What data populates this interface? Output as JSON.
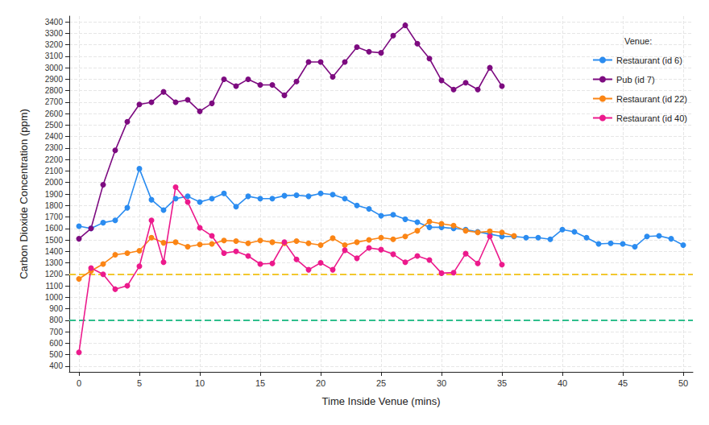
{
  "chart_data": {
    "type": "line",
    "x_label": "Time Inside Venue (mins)",
    "y_label": "Carbon Dioxide Concentration (ppm)",
    "legend_title": "Venue:",
    "legend": "top-right",
    "grid": true,
    "marker": "circle",
    "xlim": [
      -0.8,
      50.8
    ],
    "xticks": [
      0,
      5,
      10,
      15,
      20,
      25,
      30,
      35,
      40,
      45,
      50
    ],
    "ylim": [
      350,
      3450
    ],
    "yticks": [
      400,
      500,
      600,
      700,
      800,
      900,
      1000,
      1100,
      1200,
      1300,
      1400,
      1500,
      1600,
      1700,
      1800,
      1900,
      2000,
      2100,
      2200,
      2300,
      2400,
      2500,
      2600,
      2700,
      2800,
      2900,
      3000,
      3100,
      3200,
      3300,
      3400
    ],
    "hlines": [
      {
        "value": 1200,
        "color": "#f2c82e",
        "line_style": "dashed"
      },
      {
        "value": 800,
        "color": "#2ebf8c",
        "line_style": "dashed"
      }
    ],
    "series": [
      {
        "name": "Restaurant (id 6)",
        "color": "#2b8cf0",
        "x": [
          0,
          1,
          2,
          3,
          4,
          5,
          6,
          7,
          8,
          9,
          10,
          11,
          12,
          13,
          14,
          15,
          16,
          17,
          18,
          19,
          20,
          21,
          22,
          23,
          24,
          25,
          26,
          27,
          28,
          29,
          30,
          31,
          32,
          33,
          34,
          35,
          36,
          37,
          38,
          39,
          40,
          41,
          42,
          43,
          44,
          45,
          46,
          47,
          48,
          49,
          50
        ],
        "values": [
          1620,
          1600,
          1650,
          1670,
          1780,
          2120,
          1850,
          1760,
          1860,
          1880,
          1830,
          1860,
          1905,
          1790,
          1880,
          1860,
          1860,
          1885,
          1890,
          1880,
          1905,
          1895,
          1860,
          1800,
          1770,
          1710,
          1720,
          1680,
          1655,
          1610,
          1610,
          1600,
          1590,
          1570,
          1550,
          1530,
          1530,
          1520,
          1520,
          1505,
          1590,
          1570,
          1520,
          1465,
          1470,
          1465,
          1440,
          1530,
          1535,
          1510,
          1455
        ]
      },
      {
        "name": "Pub (id 7)",
        "color": "#7d0b80",
        "x": [
          0,
          1,
          2,
          3,
          4,
          5,
          6,
          7,
          8,
          9,
          10,
          11,
          12,
          13,
          14,
          15,
          16,
          17,
          18,
          19,
          20,
          21,
          22,
          23,
          24,
          25,
          26,
          27,
          28,
          29,
          30,
          31,
          32,
          33,
          34,
          35
        ],
        "values": [
          1510,
          1600,
          1980,
          2280,
          2530,
          2680,
          2700,
          2790,
          2700,
          2720,
          2620,
          2690,
          2900,
          2840,
          2900,
          2850,
          2850,
          2760,
          2880,
          3050,
          3050,
          2920,
          3050,
          3180,
          3140,
          3130,
          3280,
          3370,
          3210,
          3080,
          2890,
          2810,
          2870,
          2810,
          3000,
          2840
        ]
      },
      {
        "name": "Restaurant (id 22)",
        "color": "#fb8515",
        "x": [
          0,
          1,
          2,
          3,
          4,
          5,
          6,
          7,
          8,
          9,
          10,
          11,
          12,
          13,
          14,
          15,
          16,
          17,
          18,
          19,
          20,
          21,
          22,
          23,
          24,
          25,
          26,
          27,
          28,
          29,
          30,
          31,
          32,
          33,
          34,
          35,
          36
        ],
        "values": [
          1160,
          1230,
          1290,
          1370,
          1385,
          1405,
          1520,
          1475,
          1480,
          1440,
          1460,
          1465,
          1495,
          1490,
          1470,
          1495,
          1480,
          1470,
          1490,
          1470,
          1455,
          1515,
          1455,
          1480,
          1500,
          1520,
          1505,
          1530,
          1580,
          1660,
          1640,
          1625,
          1580,
          1565,
          1575,
          1565,
          1535
        ]
      },
      {
        "name": "Restaurant (id 40)",
        "color": "#ec1a8c",
        "x": [
          0,
          1,
          2,
          3,
          4,
          5,
          6,
          7,
          8,
          9,
          10,
          11,
          12,
          13,
          14,
          15,
          16,
          17,
          18,
          19,
          20,
          21,
          22,
          23,
          24,
          25,
          26,
          27,
          28,
          29,
          30,
          31,
          32,
          33,
          34,
          35
        ],
        "values": [
          520,
          1255,
          1200,
          1070,
          1100,
          1270,
          1670,
          1305,
          1960,
          1830,
          1605,
          1535,
          1385,
          1400,
          1360,
          1290,
          1295,
          1480,
          1330,
          1240,
          1300,
          1240,
          1410,
          1340,
          1430,
          1415,
          1375,
          1305,
          1360,
          1325,
          1210,
          1215,
          1380,
          1295,
          1530,
          1285
        ]
      }
    ]
  }
}
